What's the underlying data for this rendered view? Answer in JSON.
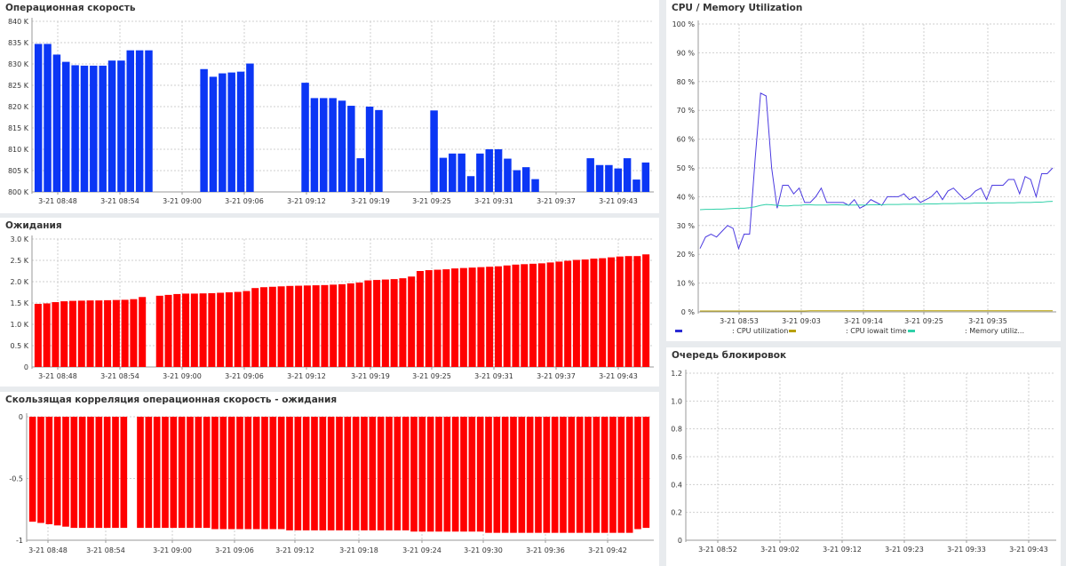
{
  "panels": {
    "ops": {
      "title": "Операционная скорость"
    },
    "waits": {
      "title": "Ожидания"
    },
    "corr": {
      "title": "Скользящая корреляция операционная скорость - ожидания"
    },
    "cpu": {
      "title": "CPU / Memory Utilization"
    },
    "locks": {
      "title": "Очередь блокировок"
    }
  },
  "legend": {
    "cpu_util": {
      "label": ": CPU utilization",
      "color": "#2a2ad4"
    },
    "cpu_iowait": {
      "label": ": CPU iowait time",
      "color": "#b8a000"
    },
    "mem_util": {
      "label": ": Memory utiliz...",
      "color": "#2fd0a8"
    }
  },
  "chart_data": [
    {
      "id": "ops",
      "type": "bar",
      "color": "#0b36f5",
      "ylim": [
        800,
        840
      ],
      "yticks": [
        800,
        805,
        810,
        815,
        820,
        825,
        830,
        835,
        840
      ],
      "ytick_labels": [
        "800 K",
        "805 K",
        "810 K",
        "815 K",
        "820 K",
        "825 K",
        "830 K",
        "835 K",
        "840 K"
      ],
      "xtick_labels": [
        "3-21 08:48",
        "3-21 08:54",
        "3-21 09:00",
        "3-21 09:06",
        "3-21 09:12",
        "3-21 09:19",
        "3-21 09:25",
        "3-21 09:31",
        "3-21 09:37",
        "3-21 09:43"
      ],
      "values": [
        834.7,
        834.7,
        832.2,
        830.5,
        829.7,
        829.6,
        829.6,
        829.6,
        830.8,
        830.8,
        833.2,
        833.2,
        833.2,
        null,
        null,
        null,
        null,
        null,
        828.8,
        827.0,
        827.8,
        828.0,
        828.2,
        830.1,
        null,
        null,
        null,
        null,
        null,
        825.6,
        822.0,
        822.0,
        822.0,
        821.4,
        820.2,
        807.9,
        820.0,
        819.2,
        null,
        null,
        null,
        null,
        null,
        819.1,
        808.0,
        809.0,
        809.0,
        803.7,
        809.0,
        810.0,
        810.0,
        807.8,
        805.1,
        805.8,
        803.0,
        null,
        null,
        null,
        null,
        null,
        807.9,
        806.3,
        806.3,
        805.5,
        807.9,
        802.9,
        806.9
      ]
    },
    {
      "id": "waits",
      "type": "bar",
      "color": "#ff0000",
      "ylim": [
        0,
        3000
      ],
      "yticks": [
        0,
        500,
        1000,
        1500,
        2000,
        2500,
        3000
      ],
      "ytick_labels": [
        "0",
        "0.5 K",
        "1.0 K",
        "1.5 K",
        "2.0 K",
        "2.5 K",
        "3.0 K"
      ],
      "xtick_labels": [
        "3-21 08:48",
        "3-21 08:54",
        "3-21 09:00",
        "3-21 09:06",
        "3-21 09:12",
        "3-21 09:19",
        "3-21 09:25",
        "3-21 09:31",
        "3-21 09:37",
        "3-21 09:43"
      ],
      "values": [
        1480,
        1490,
        1520,
        1540,
        1550,
        1555,
        1560,
        1560,
        1565,
        1570,
        1575,
        1590,
        1640,
        null,
        1670,
        1690,
        1710,
        1720,
        1720,
        1725,
        1730,
        1740,
        1750,
        1760,
        1780,
        1850,
        1870,
        1880,
        1890,
        1900,
        1905,
        1910,
        1915,
        1920,
        1930,
        1940,
        1960,
        1980,
        2030,
        2040,
        2050,
        2060,
        2080,
        2120,
        2250,
        2270,
        2280,
        2290,
        2310,
        2320,
        2330,
        2340,
        2350,
        2360,
        2380,
        2400,
        2410,
        2420,
        2430,
        2450,
        2470,
        2490,
        2510,
        2520,
        2540,
        2550,
        2570,
        2590,
        2600,
        2600,
        2640
      ]
    },
    {
      "id": "corr",
      "type": "bar",
      "color": "#ff0000",
      "ylim": [
        -1,
        0
      ],
      "yticks": [
        -1,
        -0.5,
        0
      ],
      "ytick_labels": [
        "-1",
        "-0.5",
        "0"
      ],
      "xtick_labels": [
        "3-21 08:48",
        "3-21 08:54",
        "3-21 09:00",
        "3-21 09:06",
        "3-21 09:12",
        "3-21 09:18",
        "3-21 09:24",
        "3-21 09:30",
        "3-21 09:36",
        "3-21 09:42"
      ],
      "values": [
        -0.85,
        -0.86,
        -0.87,
        -0.88,
        -0.89,
        -0.9,
        -0.9,
        -0.9,
        -0.9,
        -0.9,
        -0.9,
        -0.9,
        null,
        -0.9,
        -0.9,
        -0.9,
        -0.9,
        -0.9,
        -0.9,
        -0.9,
        -0.9,
        -0.9,
        -0.91,
        -0.91,
        -0.91,
        -0.91,
        -0.91,
        -0.91,
        -0.91,
        -0.91,
        -0.91,
        -0.92,
        -0.92,
        -0.92,
        -0.92,
        -0.92,
        -0.92,
        -0.92,
        -0.92,
        -0.92,
        -0.92,
        -0.92,
        -0.92,
        -0.92,
        -0.92,
        -0.92,
        -0.93,
        -0.93,
        -0.93,
        -0.93,
        -0.93,
        -0.93,
        -0.93,
        -0.93,
        -0.93,
        -0.94,
        -0.94,
        -0.94,
        -0.94,
        -0.94,
        -0.94,
        -0.94,
        -0.94,
        -0.94,
        -0.94,
        -0.94,
        -0.94,
        -0.94,
        -0.94,
        -0.94,
        -0.94,
        -0.94,
        -0.94,
        -0.91,
        -0.9
      ]
    },
    {
      "id": "cpu",
      "type": "line",
      "ylim": [
        0,
        100
      ],
      "yticks": [
        0,
        10,
        20,
        30,
        40,
        50,
        60,
        70,
        80,
        90,
        100
      ],
      "ytick_labels": [
        "0 %",
        "10 %",
        "20 %",
        "30 %",
        "40 %",
        "50 %",
        "60 %",
        "70 %",
        "80 %",
        "90 %",
        "100 %"
      ],
      "xtick_labels": [
        "3-21 08:53",
        "3-21 09:03",
        "3-21 09:14",
        "3-21 09:25",
        "3-21 09:35"
      ],
      "series": [
        {
          "name": "CPU utilization",
          "color": "#4b3ae0",
          "values": [
            22,
            26,
            27,
            26,
            28,
            30,
            29,
            22,
            27,
            27,
            53,
            76,
            75,
            50,
            36,
            44,
            44,
            41,
            43,
            38,
            38,
            40,
            43,
            38,
            38,
            38,
            38,
            37,
            39,
            36,
            37,
            39,
            38,
            37,
            40,
            40,
            40,
            41,
            39,
            40,
            38,
            39,
            40,
            42,
            39,
            42,
            43,
            41,
            39,
            40,
            42,
            43,
            39,
            44,
            44,
            44,
            46,
            46,
            41,
            47,
            46,
            40,
            48,
            48,
            50
          ]
        },
        {
          "name": "CPU iowait time",
          "color": "#b8a000",
          "values": [
            0.3,
            0.3,
            0.3,
            0.3,
            0.3,
            0.3,
            0.3,
            0.3,
            0.3,
            0.3,
            0.3,
            0.3,
            0.3,
            0.3,
            0.3,
            0.3,
            0.3,
            0.3,
            0.3,
            0.3,
            0.4,
            0.4,
            0.4,
            0.4,
            0.4,
            0.4,
            0.4,
            0.4,
            0.4,
            0.4,
            0.4,
            0.4,
            0.4,
            0.4,
            0.4,
            0.4,
            0.4,
            0.4,
            0.4,
            0.4,
            0.4,
            0.4,
            0.4,
            0.4,
            0.4,
            0.4,
            0.4,
            0.4,
            0.4,
            0.4,
            0.4,
            0.4,
            0.4,
            0.4,
            0.4,
            0.4,
            0.4,
            0.4,
            0.4,
            0.4,
            0.4,
            0.4,
            0.4,
            0.4,
            0.4
          ]
        },
        {
          "name": "Memory utiliz...",
          "color": "#2fd0a8",
          "values": [
            35.5,
            35.6,
            35.6,
            35.7,
            35.7,
            35.8,
            35.9,
            36,
            36,
            36.2,
            36.5,
            37,
            37.3,
            37.2,
            37,
            36.8,
            36.8,
            37,
            37,
            37.2,
            37.2,
            37.1,
            37.1,
            37.1,
            37.2,
            37.2,
            37.1,
            37.1,
            37.1,
            37.1,
            37.1,
            37.2,
            37.2,
            37.2,
            37.3,
            37.3,
            37.3,
            37.4,
            37.4,
            37.4,
            37.4,
            37.5,
            37.5,
            37.5,
            37.6,
            37.6,
            37.6,
            37.7,
            37.7,
            37.7,
            37.8,
            37.8,
            37.8,
            37.8,
            37.9,
            37.9,
            37.9,
            37.9,
            38,
            38,
            38,
            38.1,
            38.1,
            38.3,
            38.4
          ]
        }
      ]
    },
    {
      "id": "locks",
      "type": "line",
      "ylim": [
        0,
        1.2
      ],
      "yticks": [
        0,
        0.2,
        0.4,
        0.6,
        0.8,
        1.0,
        1.2
      ],
      "ytick_labels": [
        "0",
        "0.2",
        "0.4",
        "0.6",
        "0.8",
        "1.0",
        "1.2"
      ],
      "xtick_labels": [
        "3-21 08:52",
        "3-21 09:02",
        "3-21 09:12",
        "3-21 09:23",
        "3-21 09:33",
        "3-21 09:43"
      ],
      "series": []
    }
  ]
}
